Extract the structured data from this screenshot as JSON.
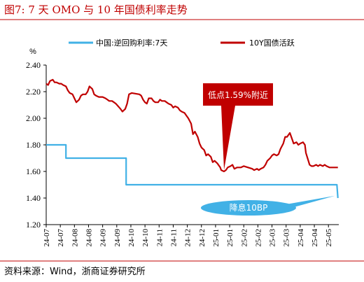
{
  "figure": {
    "title": "图7:   7 天 OMO 与 10 年国债利率走势",
    "unit": "%",
    "source": "资料来源：Wind，浙商证券研究所"
  },
  "colors": {
    "title_red": "#c00000",
    "series_blue": "#41b1e6",
    "series_red": "#c00000",
    "callout_red": "#c00000",
    "callout_blue": "#41b1e6"
  },
  "chart_data": {
    "type": "line",
    "title": "",
    "xlabel": "",
    "ylabel": "%",
    "ylim": [
      1.2,
      2.4
    ],
    "yticks": [
      "2.40",
      "2.20",
      "2.00",
      "1.80",
      "1.60",
      "1.40",
      "1.20"
    ],
    "ytick_values": [
      2.4,
      2.2,
      2.0,
      1.8,
      1.6,
      1.4,
      1.2
    ],
    "xrange": [
      "2024-07-01",
      "2025-05-08"
    ],
    "xtick_labels": [
      "24-07",
      "24-07",
      "24-08",
      "24-08",
      "24-09",
      "24-09",
      "24-10",
      "24-10",
      "24-11",
      "24-11",
      "24-12",
      "24-12",
      "25-01",
      "25-01",
      "25-02",
      "25-02",
      "25-03",
      "25-03",
      "25-04",
      "25-04",
      "25-05"
    ],
    "xtick_dates": [
      "2024-07-01",
      "2024-07-16",
      "2024-07-31",
      "2024-08-15",
      "2024-08-30",
      "2024-09-14",
      "2024-09-29",
      "2024-10-14",
      "2024-10-29",
      "2024-11-13",
      "2024-11-28",
      "2024-12-13",
      "2024-12-28",
      "2025-01-12",
      "2025-01-27",
      "2025-02-11",
      "2025-02-26",
      "2025-03-13",
      "2025-03-28",
      "2025-04-12",
      "2025-04-27"
    ],
    "legend_position": "top",
    "series": [
      {
        "name": "中国:逆回购利率:7天",
        "color": "#41b1e6",
        "step": true,
        "points": [
          [
            "2024-07-01",
            1.8
          ],
          [
            "2024-07-22",
            1.8
          ],
          [
            "2024-07-22",
            1.7
          ],
          [
            "2024-09-24",
            1.7
          ],
          [
            "2024-09-24",
            1.5
          ],
          [
            "2025-05-06",
            1.5
          ],
          [
            "2025-05-07",
            1.4
          ]
        ]
      },
      {
        "name": "10Y国债活跃",
        "color": "#c00000",
        "step": false,
        "points": [
          [
            "2024-07-01",
            2.26
          ],
          [
            "2024-07-03",
            2.25
          ],
          [
            "2024-07-05",
            2.28
          ],
          [
            "2024-07-08",
            2.29
          ],
          [
            "2024-07-10",
            2.27
          ],
          [
            "2024-07-12",
            2.27
          ],
          [
            "2024-07-15",
            2.26
          ],
          [
            "2024-07-17",
            2.26
          ],
          [
            "2024-07-19",
            2.25
          ],
          [
            "2024-07-22",
            2.24
          ],
          [
            "2024-07-24",
            2.21
          ],
          [
            "2024-07-26",
            2.19
          ],
          [
            "2024-07-29",
            2.18
          ],
          [
            "2024-07-31",
            2.15
          ],
          [
            "2024-08-02",
            2.12
          ],
          [
            "2024-08-05",
            2.14
          ],
          [
            "2024-08-07",
            2.17
          ],
          [
            "2024-08-09",
            2.18
          ],
          [
            "2024-08-12",
            2.18
          ],
          [
            "2024-08-14",
            2.2
          ],
          [
            "2024-08-16",
            2.24
          ],
          [
            "2024-08-19",
            2.22
          ],
          [
            "2024-08-21",
            2.18
          ],
          [
            "2024-08-23",
            2.17
          ],
          [
            "2024-08-26",
            2.16
          ],
          [
            "2024-08-28",
            2.16
          ],
          [
            "2024-08-30",
            2.16
          ],
          [
            "2024-09-02",
            2.15
          ],
          [
            "2024-09-04",
            2.14
          ],
          [
            "2024-09-06",
            2.13
          ],
          [
            "2024-09-09",
            2.13
          ],
          [
            "2024-09-11",
            2.12
          ],
          [
            "2024-09-13",
            2.11
          ],
          [
            "2024-09-18",
            2.07
          ],
          [
            "2024-09-20",
            2.05
          ],
          [
            "2024-09-23",
            2.07
          ],
          [
            "2024-09-25",
            2.11
          ],
          [
            "2024-09-27",
            2.18
          ],
          [
            "2024-09-30",
            2.19
          ],
          [
            "2024-10-08",
            2.18
          ],
          [
            "2024-10-10",
            2.17
          ],
          [
            "2024-10-12",
            2.14
          ],
          [
            "2024-10-14",
            2.12
          ],
          [
            "2024-10-16",
            2.11
          ],
          [
            "2024-10-18",
            2.15
          ],
          [
            "2024-10-21",
            2.15
          ],
          [
            "2024-10-23",
            2.13
          ],
          [
            "2024-10-25",
            2.12
          ],
          [
            "2024-10-28",
            2.12
          ],
          [
            "2024-10-30",
            2.14
          ],
          [
            "2024-11-01",
            2.13
          ],
          [
            "2024-11-04",
            2.13
          ],
          [
            "2024-11-06",
            2.12
          ],
          [
            "2024-11-08",
            2.11
          ],
          [
            "2024-11-11",
            2.1
          ],
          [
            "2024-11-13",
            2.08
          ],
          [
            "2024-11-15",
            2.09
          ],
          [
            "2024-11-18",
            2.08
          ],
          [
            "2024-11-20",
            2.06
          ],
          [
            "2024-11-22",
            2.05
          ],
          [
            "2024-11-25",
            2.04
          ],
          [
            "2024-11-27",
            2.02
          ],
          [
            "2024-11-29",
            2.0
          ],
          [
            "2024-12-02",
            1.96
          ],
          [
            "2024-12-04",
            1.88
          ],
          [
            "2024-12-06",
            1.9
          ],
          [
            "2024-12-09",
            1.86
          ],
          [
            "2024-12-11",
            1.81
          ],
          [
            "2024-12-13",
            1.78
          ],
          [
            "2024-12-16",
            1.76
          ],
          [
            "2024-12-18",
            1.72
          ],
          [
            "2024-12-20",
            1.73
          ],
          [
            "2024-12-23",
            1.71
          ],
          [
            "2024-12-25",
            1.67
          ],
          [
            "2024-12-27",
            1.68
          ],
          [
            "2024-12-30",
            1.66
          ],
          [
            "2025-01-02",
            1.63
          ],
          [
            "2025-01-03",
            1.61
          ],
          [
            "2025-01-06",
            1.6
          ],
          [
            "2025-01-08",
            1.61
          ],
          [
            "2025-01-10",
            1.63
          ],
          [
            "2025-01-13",
            1.64
          ],
          [
            "2025-01-15",
            1.65
          ],
          [
            "2025-01-17",
            1.62
          ],
          [
            "2025-01-20",
            1.63
          ],
          [
            "2025-01-22",
            1.63
          ],
          [
            "2025-01-24",
            1.63
          ],
          [
            "2025-01-27",
            1.64
          ],
          [
            "2025-02-05",
            1.62
          ],
          [
            "2025-02-07",
            1.61
          ],
          [
            "2025-02-10",
            1.62
          ],
          [
            "2025-02-12",
            1.61
          ],
          [
            "2025-02-14",
            1.62
          ],
          [
            "2025-02-17",
            1.63
          ],
          [
            "2025-02-19",
            1.65
          ],
          [
            "2025-02-21",
            1.68
          ],
          [
            "2025-02-24",
            1.7
          ],
          [
            "2025-02-26",
            1.72
          ],
          [
            "2025-02-28",
            1.73
          ],
          [
            "2025-03-03",
            1.72
          ],
          [
            "2025-03-05",
            1.73
          ],
          [
            "2025-03-07",
            1.77
          ],
          [
            "2025-03-10",
            1.81
          ],
          [
            "2025-03-12",
            1.86
          ],
          [
            "2025-03-14",
            1.86
          ],
          [
            "2025-03-17",
            1.89
          ],
          [
            "2025-03-19",
            1.85
          ],
          [
            "2025-03-21",
            1.81
          ],
          [
            "2025-03-24",
            1.82
          ],
          [
            "2025-03-26",
            1.8
          ],
          [
            "2025-03-28",
            1.81
          ],
          [
            "2025-03-31",
            1.82
          ],
          [
            "2025-04-02",
            1.8
          ],
          [
            "2025-04-03",
            1.74
          ],
          [
            "2025-04-07",
            1.65
          ],
          [
            "2025-04-09",
            1.64
          ],
          [
            "2025-04-11",
            1.64
          ],
          [
            "2025-04-14",
            1.65
          ],
          [
            "2025-04-16",
            1.64
          ],
          [
            "2025-04-18",
            1.65
          ],
          [
            "2025-04-21",
            1.64
          ],
          [
            "2025-04-23",
            1.65
          ],
          [
            "2025-04-25",
            1.64
          ],
          [
            "2025-04-28",
            1.63
          ],
          [
            "2025-04-30",
            1.63
          ],
          [
            "2025-05-06",
            1.63
          ],
          [
            "2025-05-07",
            1.63
          ]
        ]
      }
    ],
    "annotations": [
      {
        "text": "低点1.59%附近",
        "shape": "callout-box",
        "target": [
          "2025-01-06",
          1.59
        ]
      },
      {
        "text": "降息10BP",
        "shape": "callout-ellipse",
        "target": [
          "2025-05-07",
          1.47
        ]
      }
    ]
  }
}
